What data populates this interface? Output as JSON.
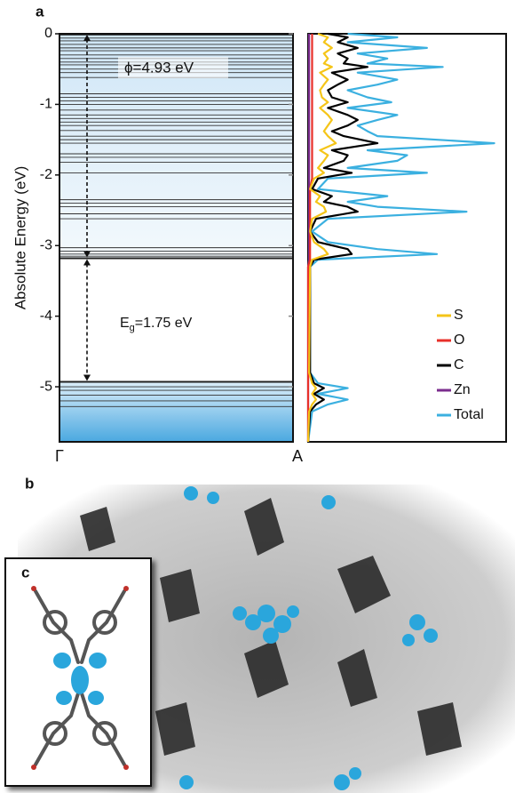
{
  "chart_data": {
    "type": "band_dos",
    "panel_label": "a",
    "ylabel": "Absolute Energy (eV)",
    "ylim": [
      -5.78,
      0
    ],
    "yticks": [
      0,
      -1,
      -2,
      -3,
      -4,
      -5
    ],
    "xlabels": [
      "Γ",
      "A"
    ],
    "bands": [
      -0.02,
      -0.06,
      -0.1,
      -0.15,
      -0.2,
      -0.24,
      -0.3,
      -0.35,
      -0.4,
      -0.44,
      -0.5,
      -0.55,
      -0.62,
      -0.85,
      -0.9,
      -0.95,
      -1.0,
      -1.08,
      -1.15,
      -1.2,
      -1.25,
      -1.3,
      -1.37,
      -1.45,
      -1.5,
      -1.55,
      -1.7,
      -1.75,
      -1.82,
      -1.97,
      -2.35,
      -2.4,
      -2.45,
      -2.55,
      -2.62,
      -3.03,
      -3.08,
      -3.12,
      -3.15,
      -5.0,
      -5.05,
      -5.12,
      -5.2,
      -5.28
    ],
    "cbm": -3.18,
    "vbm": -4.93,
    "phi_label": "ϕ=4.93 eV",
    "gap_label": {
      "main": "E",
      "sub": "g",
      "rest": "=1.75 eV"
    },
    "dos_xlim": [
      0,
      1
    ],
    "energies": [
      0,
      -0.05,
      -0.12,
      -0.2,
      -0.28,
      -0.35,
      -0.42,
      -0.47,
      -0.55,
      -0.65,
      -0.72,
      -0.8,
      -0.9,
      -0.97,
      -1.05,
      -1.15,
      -1.22,
      -1.3,
      -1.38,
      -1.45,
      -1.55,
      -1.65,
      -1.72,
      -1.8,
      -1.9,
      -1.97,
      -2.05,
      -2.2,
      -2.3,
      -2.38,
      -2.45,
      -2.52,
      -2.62,
      -2.8,
      -2.95,
      -3.05,
      -3.12,
      -3.2,
      -3.3,
      -4.8,
      -4.95,
      -5.02,
      -5.1,
      -5.18,
      -5.25,
      -5.35,
      -5.78
    ],
    "series": [
      {
        "name": "S",
        "color": "#f5c518",
        "values": [
          0.05,
          0.1,
          0.08,
          0.12,
          0.08,
          0.1,
          0.08,
          0.12,
          0.06,
          0.1,
          0.08,
          0.06,
          0.07,
          0.1,
          0.06,
          0.1,
          0.12,
          0.1,
          0.08,
          0.1,
          0.14,
          0.06,
          0.1,
          0.08,
          0.05,
          0.08,
          0.03,
          0.01,
          0.06,
          0.04,
          0.08,
          0.09,
          0.02,
          0.01,
          0.03,
          0.08,
          0.1,
          0.02,
          0.01,
          0.005,
          0.02,
          0.04,
          0.02,
          0.04,
          0.02,
          0.005,
          0
        ]
      },
      {
        "name": "O",
        "color": "#e8302a",
        "values": [
          0.02,
          0.02,
          0.02,
          0.02,
          0.02,
          0.02,
          0.02,
          0.02,
          0.02,
          0.02,
          0.02,
          0.02,
          0.02,
          0.02,
          0.02,
          0.02,
          0.02,
          0.02,
          0.02,
          0.02,
          0.02,
          0.02,
          0.02,
          0.02,
          0.02,
          0.02,
          0.02,
          0.01,
          0.01,
          0.01,
          0.01,
          0.01,
          0.01,
          0.01,
          0.01,
          0.01,
          0.01,
          0.01,
          0,
          0,
          0,
          0,
          0,
          0,
          0,
          0,
          0
        ]
      },
      {
        "name": "C",
        "color": "#000000",
        "values": [
          0.1,
          0.2,
          0.15,
          0.25,
          0.15,
          0.2,
          0.18,
          0.3,
          0.12,
          0.2,
          0.15,
          0.1,
          0.12,
          0.2,
          0.1,
          0.2,
          0.25,
          0.2,
          0.12,
          0.18,
          0.35,
          0.12,
          0.2,
          0.18,
          0.08,
          0.22,
          0.05,
          0.02,
          0.12,
          0.08,
          0.2,
          0.25,
          0.04,
          0.01,
          0.05,
          0.2,
          0.22,
          0.03,
          0.01,
          0.01,
          0.03,
          0.08,
          0.03,
          0.08,
          0.04,
          0.01,
          0
        ]
      },
      {
        "name": "Zn",
        "color": "#7b2d8e",
        "values": [
          0.005,
          0.005,
          0.005,
          0.005,
          0.005,
          0.005,
          0.005,
          0.005,
          0.005,
          0.005,
          0.005,
          0.005,
          0.005,
          0.005,
          0.005,
          0.005,
          0.005,
          0.005,
          0.005,
          0.005,
          0.005,
          0.005,
          0.005,
          0.005,
          0.005,
          0.005,
          0.005,
          0.005,
          0.005,
          0.005,
          0.005,
          0.005,
          0.005,
          0.005,
          0.005,
          0.005,
          0.005,
          0.005,
          0,
          0,
          0,
          0,
          0,
          0,
          0,
          0,
          0
        ]
      },
      {
        "name": "Total",
        "color": "#3bb0e0",
        "values": [
          0.2,
          0.45,
          0.2,
          0.6,
          0.25,
          0.4,
          0.3,
          0.68,
          0.25,
          0.45,
          0.35,
          0.2,
          0.3,
          0.42,
          0.2,
          0.45,
          0.35,
          0.25,
          0.3,
          0.35,
          0.94,
          0.3,
          0.5,
          0.45,
          0.2,
          0.6,
          0.1,
          0.05,
          0.4,
          0.2,
          0.35,
          0.8,
          0.1,
          0.02,
          0.1,
          0.35,
          0.65,
          0.05,
          0.01,
          0.01,
          0.05,
          0.2,
          0.05,
          0.2,
          0.1,
          0.02,
          0
        ]
      }
    ]
  },
  "panel_labels": [
    "b",
    "c"
  ]
}
